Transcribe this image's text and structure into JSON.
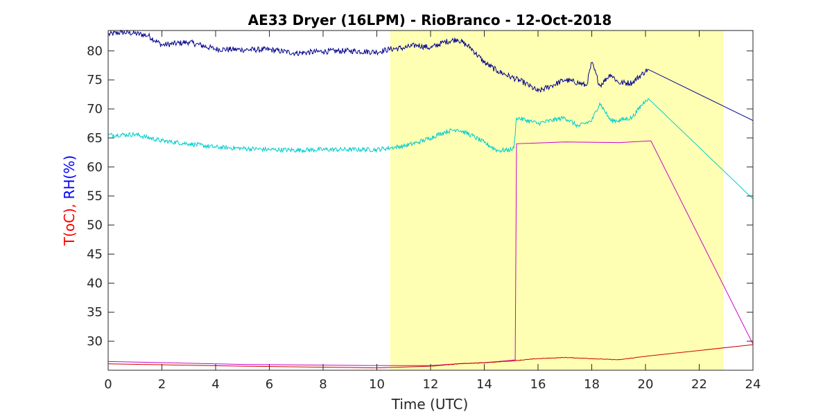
{
  "chart_data": {
    "type": "line",
    "title": "AE33 Dryer (16LPM)  - RioBranco - 12-Oct-2018",
    "xlabel": "Time (UTC)",
    "ylabel_parts": [
      {
        "text": "T(oC), ",
        "color": "#ff0000"
      },
      {
        "text": "RH(%)",
        "color": "#0000ff"
      }
    ],
    "xlim": [
      0,
      24
    ],
    "ylim": [
      25,
      83.5
    ],
    "xticks": [
      0,
      2,
      4,
      6,
      8,
      10,
      12,
      14,
      16,
      18,
      20,
      22,
      24
    ],
    "yticks": [
      30,
      35,
      40,
      45,
      50,
      55,
      60,
      65,
      70,
      75,
      80
    ],
    "grid": false,
    "highlight_span": {
      "x0": 10.5,
      "x1": 22.9,
      "color": "#ffffb3"
    },
    "series": [
      {
        "color": "#00008b",
        "noise": 0.5,
        "points": [
          [
            0,
            82.8
          ],
          [
            0.5,
            83.2
          ],
          [
            1,
            83
          ],
          [
            1.5,
            82.6
          ],
          [
            2,
            81
          ],
          [
            3,
            81.5
          ],
          [
            4,
            80.3
          ],
          [
            5,
            80.2
          ],
          [
            6,
            80.2
          ],
          [
            7,
            79.6
          ],
          [
            8,
            79.9
          ],
          [
            9,
            80
          ],
          [
            10,
            79.8
          ],
          [
            10.5,
            80.3
          ],
          [
            11,
            80.5
          ],
          [
            11.5,
            81
          ],
          [
            12,
            80.5
          ],
          [
            12.5,
            81.5
          ],
          [
            13,
            82
          ],
          [
            13.5,
            80.5
          ],
          [
            14,
            78
          ],
          [
            14.5,
            76.5
          ],
          [
            15,
            75.5
          ],
          [
            15.5,
            74.5
          ],
          [
            16,
            73
          ],
          [
            16.5,
            74
          ],
          [
            17,
            75
          ],
          [
            17.5,
            74.5
          ],
          [
            17.8,
            74
          ],
          [
            18,
            78
          ],
          [
            18.3,
            74
          ],
          [
            18.7,
            76
          ],
          [
            19,
            74.5
          ],
          [
            19.5,
            74.5
          ],
          [
            20,
            76.5
          ],
          [
            20.1,
            76.8
          ],
          [
            24,
            68
          ]
        ]
      },
      {
        "color": "#00cccc",
        "noise": 0.4,
        "points": [
          [
            0,
            65.5
          ],
          [
            1,
            65.6
          ],
          [
            2,
            64.5
          ],
          [
            3,
            64
          ],
          [
            4,
            63.4
          ],
          [
            5,
            63.2
          ],
          [
            6,
            63
          ],
          [
            7,
            62.9
          ],
          [
            8,
            63
          ],
          [
            9,
            63
          ],
          [
            10,
            63
          ],
          [
            10.5,
            63.3
          ],
          [
            11,
            63.6
          ],
          [
            11.5,
            64.2
          ],
          [
            12,
            65
          ],
          [
            12.5,
            66
          ],
          [
            13,
            66.5
          ],
          [
            13.5,
            65.5
          ],
          [
            14,
            64.2
          ],
          [
            14.5,
            62.8
          ],
          [
            15,
            63
          ],
          [
            15.1,
            63.2
          ],
          [
            15.2,
            68.5
          ],
          [
            16,
            67.5
          ],
          [
            17,
            68.5
          ],
          [
            17.5,
            67
          ],
          [
            18,
            68
          ],
          [
            18.3,
            71
          ],
          [
            18.7,
            68
          ],
          [
            19,
            68
          ],
          [
            19.5,
            68.5
          ],
          [
            20,
            71.5
          ],
          [
            20.1,
            71.8
          ],
          [
            24,
            54.5
          ]
        ]
      },
      {
        "color": "#cc00cc",
        "noise": 0,
        "points": [
          [
            0,
            26.5
          ],
          [
            5,
            26
          ],
          [
            10,
            25.8
          ],
          [
            12,
            25.8
          ],
          [
            13,
            26.1
          ],
          [
            14,
            26.3
          ],
          [
            15,
            26.7
          ],
          [
            15.15,
            26.8
          ],
          [
            15.2,
            64
          ],
          [
            17,
            64.3
          ],
          [
            19,
            64.2
          ],
          [
            20.2,
            64.5
          ],
          [
            24,
            29.5
          ]
        ]
      },
      {
        "color": "#cc0000",
        "noise": 0.05,
        "points": [
          [
            0,
            26.1
          ],
          [
            5,
            25.7
          ],
          [
            10,
            25.4
          ],
          [
            12,
            25.7
          ],
          [
            13,
            26.1
          ],
          [
            14,
            26.3
          ],
          [
            15,
            26.6
          ],
          [
            16,
            27
          ],
          [
            17,
            27.2
          ],
          [
            18,
            27
          ],
          [
            19,
            26.8
          ],
          [
            20,
            27.4
          ],
          [
            24,
            29.4
          ]
        ]
      }
    ]
  }
}
